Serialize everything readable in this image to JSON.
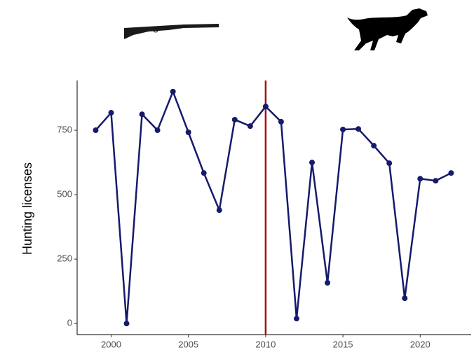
{
  "chart_data": {
    "type": "line",
    "y_label": "Hunting licenses",
    "x": [
      1999,
      2000,
      2001,
      2002,
      2003,
      2004,
      2005,
      2006,
      2007,
      2008,
      2009,
      2010,
      2011,
      2012,
      2013,
      2014,
      2015,
      2016,
      2017,
      2018,
      2019,
      2020,
      2021,
      2022
    ],
    "series": [
      {
        "color": "#161a6b",
        "values": [
          750,
          818,
          0,
          812,
          750,
          900,
          742,
          584,
          440,
          791,
          766,
          842,
          783,
          19,
          625,
          158,
          753,
          755,
          690,
          622,
          98,
          562,
          554,
          584
        ]
      }
    ],
    "xlim": [
      1997.8,
      2023.3
    ],
    "ylim": [
      -43,
      943
    ],
    "xticks": [
      2000,
      2005,
      2010,
      2015,
      2020
    ],
    "yticks": [
      0,
      250,
      500,
      750
    ],
    "reference_line": {
      "x": 2010,
      "color": "#a50f15"
    }
  }
}
